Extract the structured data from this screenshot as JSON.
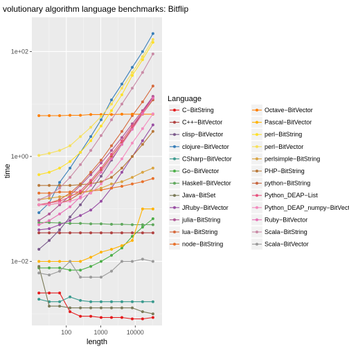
{
  "chart_data": {
    "type": "line",
    "title": "volutionary algorithm language benchmarks: Bitflip",
    "xlabel": "length",
    "ylabel": "time",
    "x_scale": "log10",
    "y_scale": "log10",
    "xlim": [
      10,
      60000
    ],
    "ylim": [
      0.0006,
      450
    ],
    "x_ticks": [
      {
        "value": 100,
        "label": "100"
      },
      {
        "value": 1000,
        "label": "1000"
      },
      {
        "value": 10000,
        "label": "10000"
      }
    ],
    "y_ticks": [
      {
        "value": 0.01,
        "label": "1e−02"
      },
      {
        "value": 1,
        "label": "1e+00"
      },
      {
        "value": 100,
        "label": "1e+02"
      }
    ],
    "grid": true,
    "legend_title": "Language",
    "legend_position": "right",
    "x": [
      16,
      32,
      64,
      128,
      256,
      512,
      1024,
      2048,
      4096,
      8192,
      16384,
      32768
    ],
    "series": [
      {
        "name": "C−BitString",
        "color": "#e41a1c",
        "values": [
          0.0025,
          0.0025,
          0.0025,
          0.0011,
          0.0009,
          0.0009,
          0.00085,
          0.00085,
          0.00085,
          0.0008,
          0.0008,
          0.00085
        ]
      },
      {
        "name": "C++−BitVector",
        "color": "#b0403f",
        "values": [
          0.035,
          0.035,
          0.035,
          0.035,
          0.035,
          0.035,
          0.035,
          0.035,
          0.035,
          0.035,
          0.035,
          0.035
        ]
      },
      {
        "name": "clisp−BitVector",
        "color": "#7b5a8c",
        "values": [
          0.017,
          0.025,
          0.04,
          0.07,
          0.12,
          0.22,
          0.42,
          0.85,
          1.7,
          3.5,
          7.0,
          14.0
        ]
      },
      {
        "name": "clojure−BitVector",
        "color": "#377eb8",
        "values": [
          0.085,
          0.13,
          0.32,
          0.6,
          1.2,
          2.4,
          5.0,
          12.0,
          24.0,
          50.0,
          100.0,
          220.0
        ]
      },
      {
        "name": "CSharp−BitVector",
        "color": "#3a9a8e",
        "values": [
          0.0019,
          0.0017,
          0.0017,
          0.0021,
          0.0018,
          0.0017,
          0.0017,
          0.0017,
          0.0017,
          0.0017,
          0.0017,
          0.0017
        ]
      },
      {
        "name": "Go−BitVector",
        "color": "#4daf4a",
        "values": [
          0.0075,
          0.0075,
          0.0075,
          0.0068,
          0.0068,
          0.008,
          0.01,
          0.013,
          0.018,
          0.03,
          0.045,
          0.065
        ]
      },
      {
        "name": "Haskell−BitVector",
        "color": "#5fa85c",
        "values": [
          0.055,
          0.055,
          0.054,
          0.053,
          0.053,
          0.052,
          0.052,
          0.051,
          0.051,
          0.05,
          0.05,
          0.05
        ]
      },
      {
        "name": "Java−BitSet",
        "color": "#7a7a58",
        "values": [
          0.008,
          0.0014,
          0.0014,
          0.0013,
          0.0013,
          0.0013,
          0.0013,
          0.0013,
          0.0013,
          0.0013,
          0.0011,
          0.001
        ]
      },
      {
        "name": "JRuby−BitVector",
        "color": "#984ea3",
        "values": [
          0.04,
          0.042,
          0.05,
          0.06,
          0.075,
          0.095,
          0.14,
          0.25,
          0.5,
          1.0,
          2.0,
          4.0
        ]
      },
      {
        "name": "julia−BitString",
        "color": "#b05796",
        "values": [
          0.06,
          0.08,
          0.12,
          0.18,
          0.28,
          0.45,
          0.75,
          1.3,
          2.3,
          4.2,
          7.5,
          14.0
        ]
      },
      {
        "name": "lua−BitString",
        "color": "#d66a3d",
        "values": [
          0.12,
          0.13,
          0.15,
          0.2,
          0.3,
          0.5,
          0.85,
          1.6,
          3.0,
          6.0,
          11.0,
          22.0
        ]
      },
      {
        "name": "node−BitString",
        "color": "#e8702a",
        "values": [
          0.2,
          0.2,
          0.21,
          0.21,
          0.21,
          0.22,
          0.23,
          0.25,
          0.27,
          0.3,
          0.33,
          0.38
        ]
      },
      {
        "name": "Octave−BitVector",
        "color": "#ff7f00",
        "values": [
          6.0,
          6.0,
          6.0,
          6.1,
          6.1,
          6.3,
          6.3,
          6.3,
          6.4,
          6.4,
          6.4,
          6.4
        ]
      },
      {
        "name": "Pascal−BitVector",
        "color": "#ffb300",
        "values": [
          0.01,
          0.01,
          0.01,
          0.01,
          0.01,
          0.012,
          0.015,
          0.017,
          0.02,
          0.025,
          0.1,
          0.1
        ]
      },
      {
        "name": "perl−BitString",
        "color": "#fde02b",
        "values": [
          0.45,
          0.5,
          0.6,
          0.8,
          1.2,
          2.0,
          3.8,
          7.5,
          15.0,
          35.0,
          70.0,
          150.0
        ]
      },
      {
        "name": "perl−BitVector",
        "color": "#f6e05a",
        "values": [
          1.05,
          1.15,
          1.3,
          1.6,
          2.4,
          3.6,
          5.8,
          10.0,
          20.0,
          40.0,
          80.0,
          170.0
        ]
      },
      {
        "name": "perlsimple−BitString",
        "color": "#d9a441",
        "values": [
          0.15,
          0.16,
          0.17,
          0.18,
          0.2,
          0.22,
          0.25,
          0.3,
          0.33,
          0.4,
          0.5,
          0.6
        ]
      },
      {
        "name": "PHP−BitString",
        "color": "#b8793a",
        "values": [
          0.28,
          0.28,
          0.28,
          0.28,
          0.29,
          0.3,
          0.33,
          0.4,
          0.6,
          1.0,
          1.7,
          3.0
        ]
      },
      {
        "name": "python−BitString",
        "color": "#c7663f",
        "values": [
          0.12,
          0.12,
          0.13,
          0.15,
          0.2,
          0.32,
          0.55,
          1.0,
          1.8,
          3.5,
          6.5,
          12.0
        ]
      },
      {
        "name": "Python_DEAP−List",
        "color": "#e7537f",
        "values": [
          0.12,
          0.13,
          0.14,
          0.17,
          0.22,
          0.35,
          0.6,
          1.1,
          2.0,
          3.8,
          7.0,
          13.0
        ]
      },
      {
        "name": "Python_DEAP_numpy−BitVector",
        "color": "#f38bbe",
        "values": [
          0.12,
          0.12,
          0.13,
          0.14,
          0.16,
          0.2,
          0.3,
          0.5,
          0.9,
          1.8,
          3.4,
          6.5
        ]
      },
      {
        "name": "Ruby−BitVector",
        "color": "#e772b6",
        "values": [
          0.05,
          0.06,
          0.08,
          0.11,
          0.17,
          0.28,
          0.5,
          0.9,
          1.7,
          3.3,
          6.5,
          13.0
        ]
      },
      {
        "name": "Scala−BitString",
        "color": "#c98aa6",
        "values": [
          0.15,
          0.18,
          0.25,
          0.4,
          0.7,
          1.3,
          2.5,
          5.0,
          10.0,
          20.0,
          40.0,
          90.0
        ]
      },
      {
        "name": "Scala−BitVector",
        "color": "#999999",
        "values": [
          0.006,
          0.0055,
          0.0065,
          0.01,
          0.005,
          0.005,
          0.005,
          0.0065,
          0.01,
          0.01,
          0.011,
          0.01
        ]
      }
    ]
  }
}
